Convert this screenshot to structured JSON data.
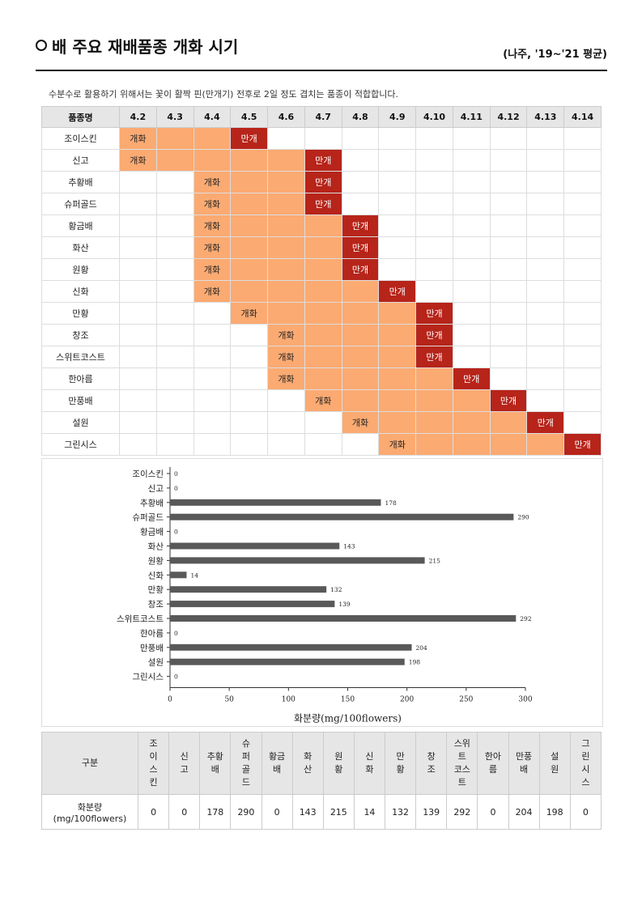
{
  "header": {
    "title": "배 주요 재배품종 개화 시기",
    "period": "(나주, '19~'21 평균)"
  },
  "note": "수분수로 활용하기 위해서는 꽃이 활짝 핀(만개기) 전후로 2일 정도 겹치는 품종이 적합합니다.",
  "schedule": {
    "corner_label": "품종명",
    "dates": [
      "4.2",
      "4.3",
      "4.4",
      "4.5",
      "4.6",
      "4.7",
      "4.8",
      "4.9",
      "4.10",
      "4.11",
      "4.12",
      "4.13",
      "4.14"
    ],
    "flowering_label": "개화",
    "peak_label": "만개",
    "rows": [
      {
        "name": "조이스킨",
        "start": 0,
        "peak": 3
      },
      {
        "name": "신고",
        "start": 0,
        "peak": 5
      },
      {
        "name": "추황배",
        "start": 2,
        "peak": 5
      },
      {
        "name": "슈퍼골드",
        "start": 2,
        "peak": 5
      },
      {
        "name": "황금배",
        "start": 2,
        "peak": 6
      },
      {
        "name": "화산",
        "start": 2,
        "peak": 6
      },
      {
        "name": "원황",
        "start": 2,
        "peak": 6
      },
      {
        "name": "신화",
        "start": 2,
        "peak": 7
      },
      {
        "name": "만황",
        "start": 3,
        "peak": 8
      },
      {
        "name": "창조",
        "start": 4,
        "peak": 8
      },
      {
        "name": "스위트코스트",
        "start": 4,
        "peak": 8
      },
      {
        "name": "한아름",
        "start": 4,
        "peak": 9
      },
      {
        "name": "만풍배",
        "start": 5,
        "peak": 10
      },
      {
        "name": "설원",
        "start": 6,
        "peak": 11
      },
      {
        "name": "그린시스",
        "start": 7,
        "peak": 12
      }
    ]
  },
  "colors": {
    "flowering": "#fbaa72",
    "peak": "#b7241a",
    "bar": "#595959"
  },
  "chart_data": {
    "type": "bar",
    "orientation": "horizontal",
    "categories": [
      "조이스킨",
      "신고",
      "추황배",
      "슈퍼골드",
      "황금배",
      "화산",
      "원황",
      "신화",
      "만황",
      "창조",
      "스위트코스트",
      "한아름",
      "만풍배",
      "설원",
      "그린시스"
    ],
    "values": [
      0,
      0,
      178,
      290,
      0,
      143,
      215,
      14,
      132,
      139,
      292,
      0,
      204,
      198,
      0
    ],
    "xlabel": "화분량(mg/100flowers)",
    "xlim": [
      0,
      300
    ],
    "xticks": [
      0,
      50,
      100,
      150,
      200,
      250,
      300
    ],
    "grid": false
  },
  "pollen_table": {
    "header_label": "구분",
    "row_label": [
      "화분량",
      "(mg/100flowers)"
    ],
    "columns": [
      {
        "lines": [
          "조",
          "이",
          "스",
          "킨"
        ],
        "value": "0"
      },
      {
        "lines": [
          "신",
          "고"
        ],
        "value": "0"
      },
      {
        "lines": [
          "추황",
          "배"
        ],
        "value": "178"
      },
      {
        "lines": [
          "슈",
          "퍼",
          "골",
          "드"
        ],
        "value": "290"
      },
      {
        "lines": [
          "황금",
          "배"
        ],
        "value": "0"
      },
      {
        "lines": [
          "화",
          "산"
        ],
        "value": "143"
      },
      {
        "lines": [
          "원",
          "황"
        ],
        "value": "215"
      },
      {
        "lines": [
          "신",
          "화"
        ],
        "value": "14"
      },
      {
        "lines": [
          "만",
          "황"
        ],
        "value": "132"
      },
      {
        "lines": [
          "창",
          "조"
        ],
        "value": "139"
      },
      {
        "lines": [
          "스위",
          "트",
          "코스",
          "트"
        ],
        "value": "292"
      },
      {
        "lines": [
          "한아",
          "름"
        ],
        "value": "0"
      },
      {
        "lines": [
          "만풍",
          "배"
        ],
        "value": "204"
      },
      {
        "lines": [
          "설",
          "원"
        ],
        "value": "198"
      },
      {
        "lines": [
          "그",
          "린",
          "시",
          "스"
        ],
        "value": "0"
      }
    ]
  }
}
